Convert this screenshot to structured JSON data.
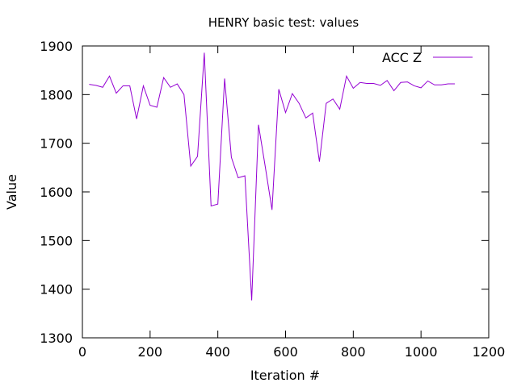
{
  "chart_data": {
    "type": "line",
    "title": "HENRY basic test: values",
    "xlabel": "Iteration #",
    "ylabel": "Value",
    "xlim": [
      0,
      1200
    ],
    "ylim": [
      1300,
      1900
    ],
    "xticks": [
      0,
      200,
      400,
      600,
      800,
      1000,
      1200
    ],
    "yticks": [
      1300,
      1400,
      1500,
      1600,
      1700,
      1800,
      1900
    ],
    "grid": false,
    "legend_position": "top-right",
    "series": [
      {
        "name": "ACC Z",
        "color": "#9400d3",
        "x": [
          20,
          40,
          60,
          80,
          100,
          120,
          140,
          160,
          180,
          200,
          220,
          240,
          260,
          280,
          300,
          320,
          340,
          360,
          380,
          400,
          420,
          440,
          460,
          480,
          500,
          520,
          540,
          560,
          580,
          600,
          620,
          640,
          660,
          680,
          700,
          720,
          740,
          760,
          780,
          800,
          820,
          840,
          860,
          880,
          900,
          920,
          940,
          960,
          980,
          1000,
          1020,
          1040,
          1060,
          1080,
          1100
        ],
        "y": [
          1821,
          1819,
          1815,
          1838,
          1803,
          1818,
          1818,
          1750,
          1818,
          1778,
          1774,
          1835,
          1815,
          1822,
          1800,
          1653,
          1673,
          1886,
          1571,
          1575,
          1833,
          1671,
          1629,
          1633,
          1377,
          1738,
          1652,
          1563,
          1811,
          1763,
          1802,
          1782,
          1752,
          1762,
          1662,
          1782,
          1791,
          1770,
          1838,
          1813,
          1825,
          1823,
          1823,
          1819,
          1829,
          1808,
          1825,
          1826,
          1818,
          1814,
          1828,
          1820,
          1820,
          1822,
          1822
        ]
      }
    ]
  }
}
